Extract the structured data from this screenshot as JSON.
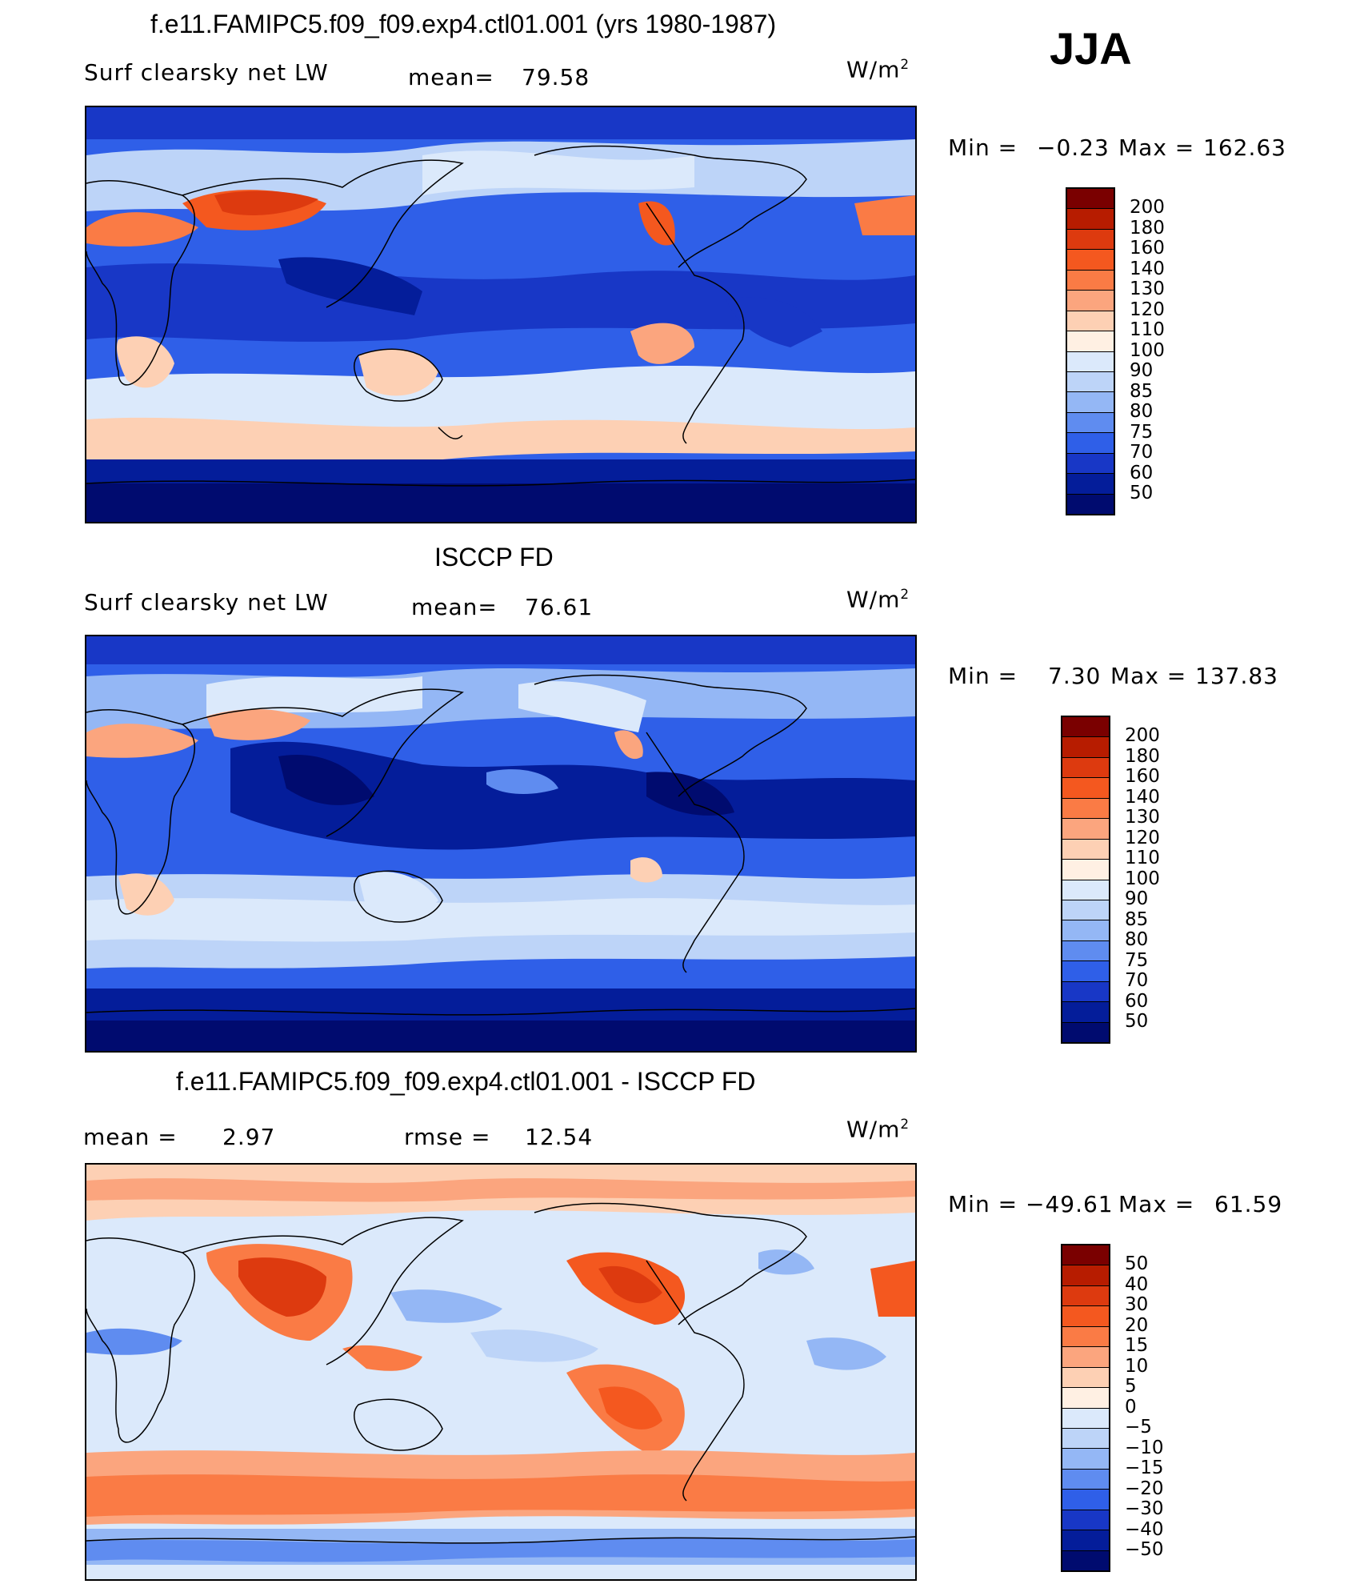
{
  "season": "JJA",
  "panels": [
    {
      "id": "model",
      "title": "f.e11.FAMIPC5.f09_f09.exp4.ctl01.001 (yrs 1980-1987)",
      "left_label": "Surf clearsky net LW",
      "stat1_label": "mean=",
      "stat1_value": "79.58",
      "stat2_label": "",
      "stat2_value": "",
      "units": "W/m",
      "units_sup": "2",
      "min_label": "Min =",
      "min_value": "−0.23",
      "max_label": "Max =",
      "max_value": "162.63",
      "colorbar_ticks": [
        "200",
        "180",
        "160",
        "140",
        "130",
        "120",
        "110",
        "100",
        "90",
        "85",
        "80",
        "75",
        "70",
        "60",
        "50"
      ]
    },
    {
      "id": "obs",
      "title": "ISCCP FD",
      "left_label": "Surf clearsky net LW",
      "stat1_label": "mean=",
      "stat1_value": "76.61",
      "stat2_label": "",
      "stat2_value": "",
      "units": "W/m",
      "units_sup": "2",
      "min_label": "Min =",
      "min_value": "7.30",
      "max_label": "Max =",
      "max_value": "137.83",
      "colorbar_ticks": [
        "200",
        "180",
        "160",
        "140",
        "130",
        "120",
        "110",
        "100",
        "90",
        "85",
        "80",
        "75",
        "70",
        "60",
        "50"
      ]
    },
    {
      "id": "diff",
      "title": "f.e11.FAMIPC5.f09_f09.exp4.ctl01.001 - ISCCP FD",
      "left_label": "mean =",
      "stat1_label": "",
      "stat1_value": "2.97",
      "stat2_label": "rmse =",
      "stat2_value": "12.54",
      "units": "W/m",
      "units_sup": "2",
      "min_label": "Min =",
      "min_value": "−49.61",
      "max_label": "Max =",
      "max_value": "61.59",
      "colorbar_ticks": [
        "50",
        "40",
        "30",
        "20",
        "15",
        "10",
        "5",
        "0",
        "−5",
        "−10",
        "−15",
        "−20",
        "−30",
        "−40",
        "−50"
      ]
    }
  ],
  "colors": {
    "palette": [
      "#7a0000",
      "#b71c00",
      "#dd3a0f",
      "#f4581f",
      "#fa7b45",
      "#fba57e",
      "#fdd0b4",
      "#fff0e3",
      "#dbe9fb",
      "#bdd4f8",
      "#94b7f5",
      "#5f8cf0",
      "#2f5fe8",
      "#1837c6",
      "#041d9a",
      "#000b6f"
    ],
    "land_outline": "#000000"
  }
}
